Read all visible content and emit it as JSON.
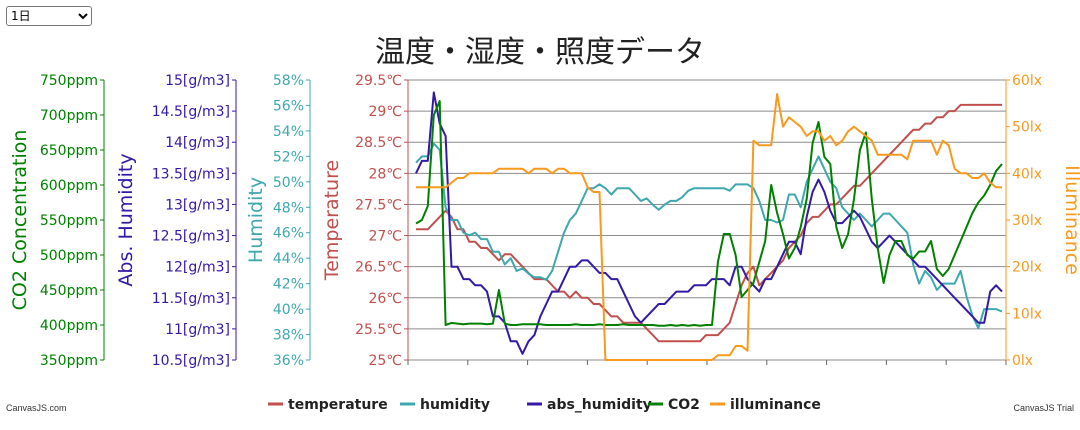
{
  "controls": {
    "range_value": "1日"
  },
  "credits": {
    "left": "CanvasJS.com",
    "right": "CanvasJS Trial"
  },
  "chart_data": {
    "type": "line",
    "title": "温度・湿度・照度データ",
    "x_points": 100,
    "axes": {
      "co2": {
        "title": "CO2 Concentration",
        "min": 350,
        "max": 750,
        "ticks": [
          "750ppm",
          "700ppm",
          "650ppm",
          "600ppm",
          "550ppm",
          "500ppm",
          "450ppm",
          "400ppm",
          "350ppm"
        ],
        "color": "#008000"
      },
      "abs_humidity": {
        "title": "Abs. Humidity",
        "min": 10.5,
        "max": 15,
        "ticks": [
          "15[g/m3]",
          "14.5[g/m3]",
          "14[g/m3]",
          "13.5[g/m3]",
          "13[g/m3]",
          "12.5[g/m3]",
          "12[g/m3]",
          "11.5[g/m3]",
          "11[g/m3]",
          "10.5[g/m3]"
        ],
        "color": "#3319a5"
      },
      "humidity": {
        "title": "Humidity",
        "min": 36,
        "max": 58,
        "ticks": [
          "58%",
          "56%",
          "54%",
          "52%",
          "50%",
          "48%",
          "46%",
          "44%",
          "42%",
          "40%",
          "38%",
          "36%"
        ],
        "color": "#3fa7b0"
      },
      "temperature": {
        "title": "Temperature",
        "min": 25,
        "max": 29.5,
        "ticks": [
          "29.5℃",
          "29℃",
          "28.5℃",
          "28℃",
          "27.5℃",
          "27℃",
          "26.5℃",
          "26℃",
          "25.5℃",
          "25℃"
        ],
        "color": "#c0504d"
      },
      "illuminance": {
        "title": "Illuminance",
        "min": 0,
        "max": 60,
        "ticks": [
          "60lx",
          "50lx",
          "40lx",
          "30lx",
          "20lx",
          "10lx",
          "0lx"
        ],
        "color": "#f79a1e"
      }
    },
    "legend_position": "bottom",
    "grid": true,
    "series": [
      {
        "name": "temperature",
        "axis": "temperature",
        "color": "#c0504d",
        "values": [
          27.1,
          27.1,
          27.1,
          27.2,
          27.3,
          27.4,
          27.3,
          27.1,
          27.1,
          26.9,
          26.9,
          26.8,
          26.8,
          26.7,
          26.6,
          26.7,
          26.7,
          26.6,
          26.5,
          26.4,
          26.3,
          26.3,
          26.3,
          26.2,
          26.1,
          26.1,
          26.0,
          26.1,
          26.0,
          26.0,
          25.9,
          25.9,
          25.8,
          25.7,
          25.7,
          25.6,
          25.6,
          25.6,
          25.6,
          25.5,
          25.4,
          25.3,
          25.3,
          25.3,
          25.3,
          25.3,
          25.3,
          25.3,
          25.3,
          25.4,
          25.4,
          25.4,
          25.5,
          25.6,
          25.9,
          26.2,
          26.4,
          26.5,
          26.2,
          26.3,
          26.4,
          26.5,
          26.6,
          26.8,
          26.9,
          27.0,
          27.2,
          27.3,
          27.3,
          27.4,
          27.5,
          27.5,
          27.6,
          27.7,
          27.8,
          27.8,
          27.9,
          28.0,
          28.1,
          28.2,
          28.3,
          28.4,
          28.5,
          28.6,
          28.7,
          28.7,
          28.8,
          28.8,
          28.9,
          28.9,
          29.0,
          29.0,
          29.1,
          29.1,
          29.1,
          29.1,
          29.1,
          29.1,
          29.1,
          29.1
        ]
      },
      {
        "name": "humidity",
        "axis": "humidity",
        "color": "#3fa7b0",
        "values": [
          51.5,
          52,
          52,
          53,
          52.5,
          48,
          47,
          47,
          46,
          45.8,
          46,
          45.5,
          45.5,
          44.5,
          44.5,
          43.5,
          44,
          43,
          43.2,
          42.8,
          42.5,
          42.5,
          42.3,
          43,
          44.5,
          46,
          47,
          47.5,
          48.5,
          49.5,
          49.5,
          49.8,
          49.5,
          49,
          49.5,
          49.5,
          49.5,
          49,
          48.5,
          48.7,
          48.2,
          47.8,
          48.2,
          48.5,
          48.5,
          48.8,
          49.3,
          49.5,
          49.5,
          49.5,
          49.5,
          49.5,
          49.5,
          49.3,
          49.8,
          49.8,
          49.8,
          49.5,
          48.5,
          47,
          47,
          46.8,
          47,
          49,
          49,
          48,
          50,
          51,
          52,
          51,
          50,
          49.5,
          48,
          47.5,
          47,
          47.5,
          47,
          46.5,
          47,
          47.5,
          47.5,
          47,
          46.5,
          46,
          43.5,
          42,
          43,
          42.5,
          41.5,
          42,
          42,
          42,
          43,
          41,
          39.5,
          38.5,
          40,
          40,
          40,
          39.8
        ]
      },
      {
        "name": "abs_humidity",
        "axis": "abs_humidity",
        "color": "#3319a5",
        "values": [
          13.5,
          13.7,
          13.7,
          14.8,
          14.3,
          14.1,
          12,
          12,
          11.8,
          11.8,
          11.7,
          11.7,
          11.6,
          11.2,
          11.2,
          11.1,
          10.8,
          10.8,
          10.6,
          10.8,
          10.9,
          11.2,
          11.4,
          11.6,
          11.6,
          11.8,
          12.0,
          12.0,
          12.1,
          12.1,
          12.0,
          11.9,
          11.9,
          11.8,
          11.8,
          11.6,
          11.4,
          11.2,
          11.1,
          11.2,
          11.3,
          11.4,
          11.4,
          11.5,
          11.6,
          11.6,
          11.6,
          11.7,
          11.7,
          11.7,
          11.8,
          11.8,
          11.8,
          11.7,
          12.0,
          12.0,
          11.8,
          11.7,
          11.6,
          11.8,
          11.8,
          12.0,
          12.2,
          12.4,
          12.4,
          12.2,
          12.8,
          13.2,
          13.4,
          13.2,
          12.9,
          12.7,
          12.7,
          12.8,
          12.9,
          12.8,
          12.6,
          12.4,
          12.3,
          12.4,
          12.5,
          12.4,
          12.3,
          12.2,
          12.1,
          12.0,
          12.0,
          11.9,
          11.8,
          11.7,
          11.6,
          11.5,
          11.4,
          11.3,
          11.2,
          11.1,
          11.1,
          11.6,
          11.7,
          11.6
        ]
      },
      {
        "name": "CO2",
        "axis": "co2",
        "color": "#008000",
        "values": [
          545,
          550,
          570,
          700,
          720,
          400,
          403,
          402,
          401,
          402,
          402,
          402,
          401,
          402,
          450,
          402,
          400,
          400,
          401,
          401,
          401,
          401,
          400,
          400,
          400,
          400,
          400,
          401,
          400,
          400,
          400,
          401,
          400,
          400,
          400,
          401,
          400,
          400,
          400,
          400,
          400,
          399,
          399,
          400,
          399,
          400,
          399,
          400,
          399,
          400,
          400,
          490,
          530,
          530,
          500,
          440,
          450,
          460,
          490,
          520,
          600,
          560,
          530,
          495,
          510,
          540,
          580,
          660,
          690,
          640,
          630,
          540,
          510,
          530,
          580,
          650,
          675,
          580,
          510,
          460,
          500,
          520,
          520,
          500,
          495,
          505,
          505,
          520,
          480,
          470,
          480,
          500,
          520,
          540,
          560,
          575,
          585,
          600,
          620,
          630
        ]
      },
      {
        "name": "illuminance",
        "axis": "illuminance",
        "color": "#f79a1e",
        "values": [
          37,
          37,
          37,
          37,
          37,
          37,
          38,
          39,
          39,
          40,
          40,
          40,
          40,
          40,
          41,
          41,
          41,
          41,
          41,
          40,
          41,
          41,
          41,
          40,
          41,
          41,
          40,
          40,
          40,
          37,
          36,
          36,
          0,
          0,
          0,
          0,
          0,
          0,
          0,
          0,
          0,
          0,
          0,
          0,
          0,
          0,
          0,
          0,
          0,
          0,
          0,
          1,
          1,
          1,
          3,
          3,
          2,
          47,
          46,
          46,
          46,
          57,
          50,
          52,
          51,
          50,
          48,
          49,
          49,
          47,
          48,
          46,
          47,
          49,
          50,
          49,
          48,
          47,
          44,
          44,
          44,
          44,
          44,
          43,
          47,
          47,
          47,
          47,
          44,
          47,
          46,
          41,
          40,
          40,
          39,
          39,
          40,
          38,
          37,
          37
        ]
      }
    ]
  }
}
